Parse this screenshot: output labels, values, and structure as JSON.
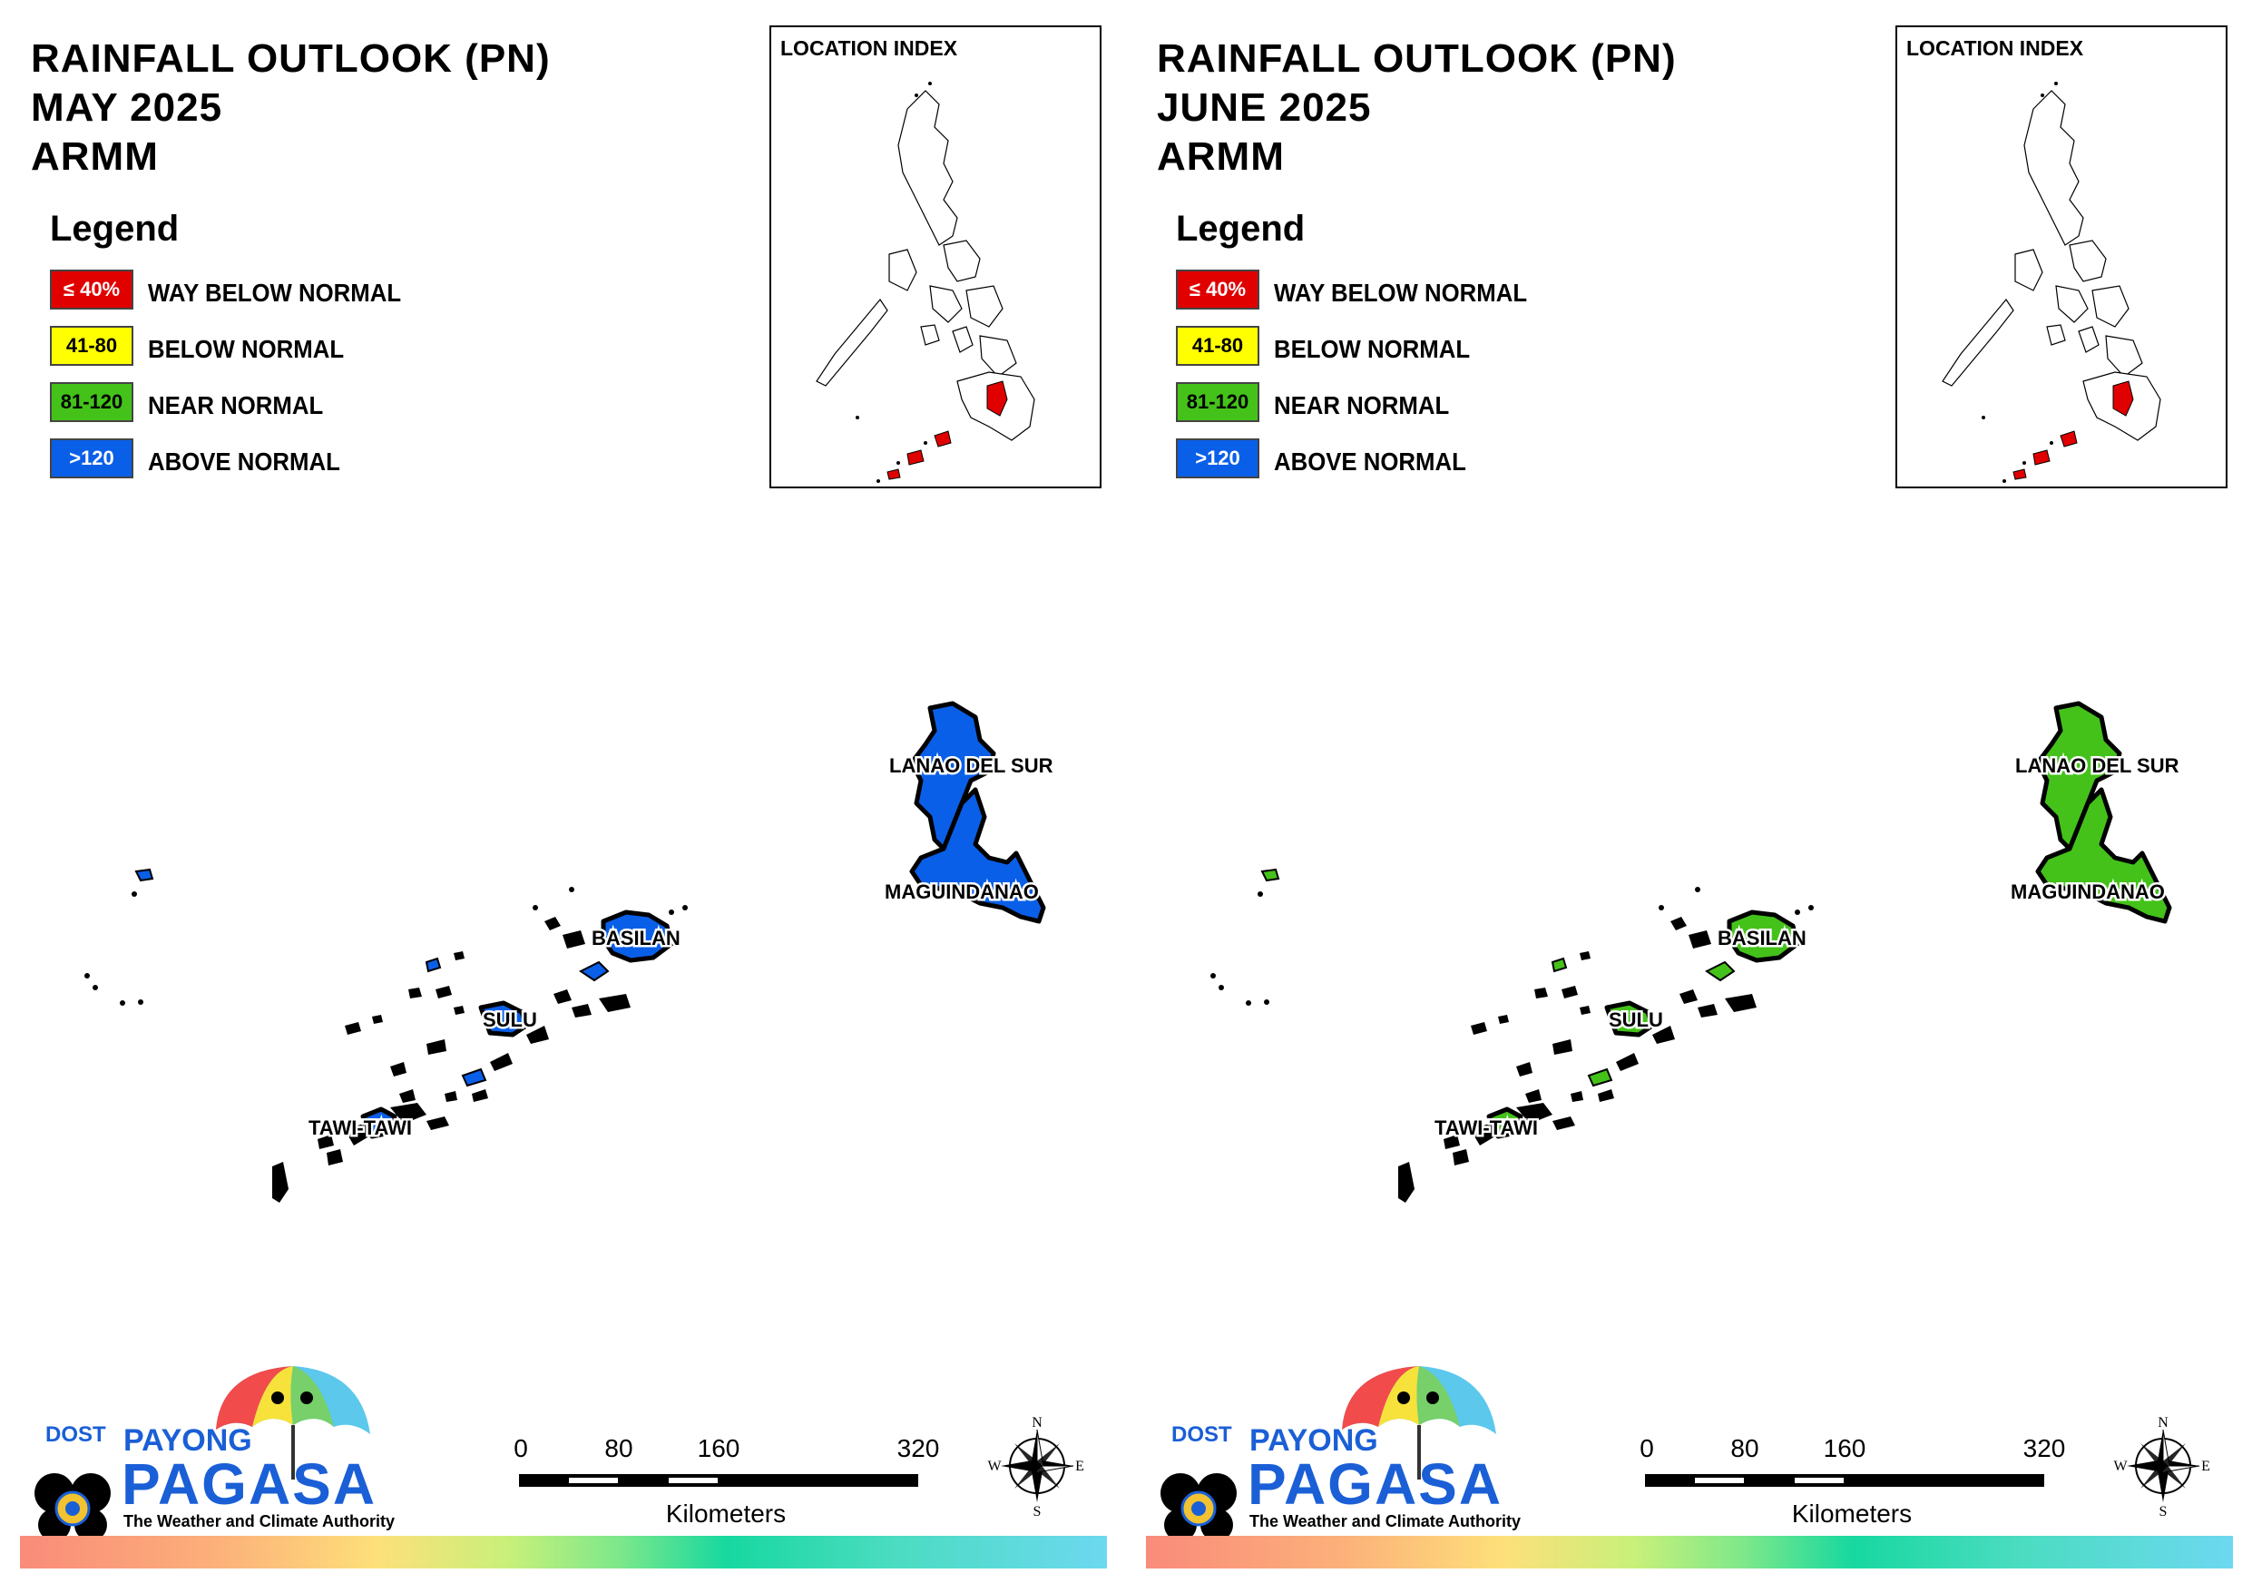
{
  "colors": {
    "way_below": "#e00000",
    "below": "#ffff00",
    "near": "#44c21a",
    "above": "#0a5fe8"
  },
  "panels": [
    {
      "title": [
        "RAINFALL OUTLOOK (PN)",
        "MAY 2025",
        "ARMM"
      ],
      "fill": "#0a5fe8",
      "legend_title": "Legend",
      "legend": [
        {
          "code": "≤ 40%",
          "label": "WAY BELOW NORMAL",
          "color": "#e00000",
          "text_color": "#ffffff"
        },
        {
          "code": "41-80",
          "label": "BELOW NORMAL",
          "color": "#ffff00",
          "text_color": "#000000"
        },
        {
          "code": "81-120",
          "label": "NEAR NORMAL",
          "color": "#44c21a",
          "text_color": "#000000"
        },
        {
          "code": ">120",
          "label": "ABOVE NORMAL",
          "color": "#0a5fe8",
          "text_color": "#ffffff"
        }
      ],
      "location_index_title": "LOCATION INDEX",
      "province_labels": [
        "LANAO DEL SUR",
        "MAGUINDANAO",
        "BASILAN",
        "SULU",
        "TAWI-TAWI"
      ],
      "scale": {
        "ticks": [
          "0",
          "80",
          "160",
          "320"
        ],
        "units": "Kilometers"
      },
      "compass": {
        "n": "N",
        "s": "S",
        "e": "E",
        "w": "W"
      },
      "logo": {
        "dost": "DOST",
        "payong": "PAYONG",
        "pagasa": "PAGASA",
        "tagline": "The Weather and Climate Authority"
      }
    },
    {
      "title": [
        "RAINFALL OUTLOOK (PN)",
        "JUNE 2025",
        "ARMM"
      ],
      "fill": "#44c21a",
      "legend_title": "Legend",
      "legend": [
        {
          "code": "≤ 40%",
          "label": "WAY BELOW NORMAL",
          "color": "#e00000",
          "text_color": "#ffffff"
        },
        {
          "code": "41-80",
          "label": "BELOW NORMAL",
          "color": "#ffff00",
          "text_color": "#000000"
        },
        {
          "code": "81-120",
          "label": "NEAR NORMAL",
          "color": "#44c21a",
          "text_color": "#000000"
        },
        {
          "code": ">120",
          "label": "ABOVE NORMAL",
          "color": "#0a5fe8",
          "text_color": "#ffffff"
        }
      ],
      "location_index_title": "LOCATION INDEX",
      "province_labels": [
        "LANAO DEL SUR",
        "MAGUINDANAO",
        "BASILAN",
        "SULU",
        "TAWI-TAWI"
      ],
      "scale": {
        "ticks": [
          "0",
          "80",
          "160",
          "320"
        ],
        "units": "Kilometers"
      },
      "compass": {
        "n": "N",
        "s": "S",
        "e": "E",
        "w": "W"
      },
      "logo": {
        "dost": "DOST",
        "payong": "PAYONG",
        "pagasa": "PAGASA",
        "tagline": "The Weather and Climate Authority"
      }
    }
  ]
}
